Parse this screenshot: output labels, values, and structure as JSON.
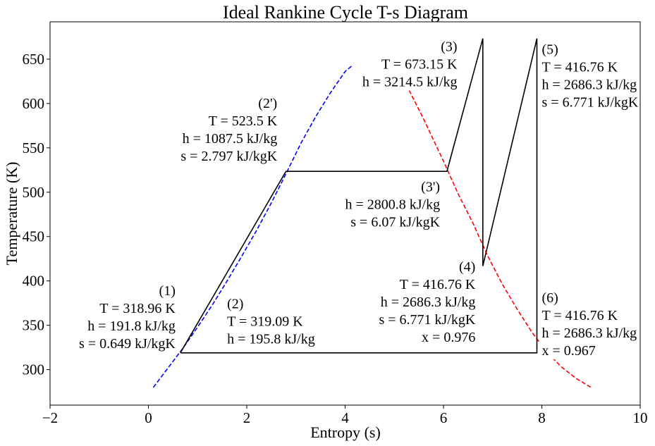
{
  "chart_data": {
    "type": "line",
    "title": "Ideal Rankine Cycle T-s Diagram",
    "xlabel": "Entropy (s)",
    "ylabel": "Temperature (K)",
    "xlim": [
      -2,
      10
    ],
    "ylim": [
      260,
      692
    ],
    "xticks": [
      -2,
      0,
      2,
      4,
      6,
      8,
      10
    ],
    "yticks": [
      300,
      350,
      400,
      450,
      500,
      550,
      600,
      650
    ],
    "grid": false,
    "legend": "none",
    "series": [
      {
        "color": "#0000ff",
        "style": "dashed",
        "x": [
          0.1,
          0.4,
          0.7,
          1.0,
          1.3,
          1.6,
          1.9,
          2.2,
          2.5,
          2.8,
          3.1,
          3.4,
          3.7,
          4.0,
          4.15
        ],
        "y": [
          280,
          302,
          324,
          348,
          373,
          400,
          428,
          457,
          488,
          521,
          555,
          585,
          612,
          636,
          643
        ]
      },
      {
        "color": "#ff0000",
        "style": "dashed",
        "x": [
          5.3,
          5.6,
          6.0,
          6.3,
          6.6,
          6.9,
          7.2,
          7.5,
          7.8,
          8.1,
          8.4,
          8.7,
          9.0
        ],
        "y": [
          615,
          582,
          535,
          498,
          465,
          428,
          396,
          368,
          342,
          320,
          303,
          290,
          280
        ]
      },
      {
        "color": "#000000",
        "style": "solid",
        "x": [
          0.649,
          2.797,
          6.07,
          6.8,
          6.8,
          7.9,
          7.9,
          0.649
        ],
        "y": [
          318.96,
          523.5,
          523.5,
          673.15,
          416.76,
          673.15,
          318.96,
          318.96
        ]
      }
    ],
    "annotations": [
      {
        "x": 0.55,
        "y": 384,
        "align": "end",
        "lines": [
          "(1)",
          "T = 318.96 K",
          "h = 191.8 kJ/kg",
          "s = 0.649 kJ/kgK"
        ]
      },
      {
        "x": 1.6,
        "y": 369,
        "align": "start",
        "lines": [
          "(2)",
          "T = 319.09 K",
          "h = 195.8 kJ/kg"
        ]
      },
      {
        "x": 2.62,
        "y": 595,
        "align": "end",
        "lines": [
          "(2')",
          "T = 523.5 K",
          "h = 1087.5 kJ/kg",
          "s = 2.797 kJ/kgK"
        ]
      },
      {
        "x": 6.28,
        "y": 659,
        "align": "end",
        "lines": [
          "(3)",
          "T = 673.15 K",
          "h = 3214.5 kJ/kg"
        ]
      },
      {
        "x": 5.93,
        "y": 501,
        "align": "end",
        "lines": [
          "(3')",
          "h = 2800.8 kJ/kg",
          "s = 6.07 kJ/kgK"
        ]
      },
      {
        "x": 6.65,
        "y": 411,
        "align": "end",
        "lines": [
          "(4)",
          "T = 416.76 K",
          "h = 2686.3 kJ/kg",
          "s = 6.771 kJ/kgK",
          "x = 0.976"
        ]
      },
      {
        "x": 8.0,
        "y": 656,
        "align": "start",
        "lines": [
          "(5)",
          "T = 416.76 K",
          "h = 2686.3 kJ/kg",
          "s = 6.771 kJ/kgK"
        ]
      },
      {
        "x": 8.0,
        "y": 376,
        "align": "start",
        "lines": [
          "(6)",
          "T = 416.76 K",
          "h = 2686.3 kJ/kg",
          "x = 0.967"
        ]
      }
    ]
  }
}
